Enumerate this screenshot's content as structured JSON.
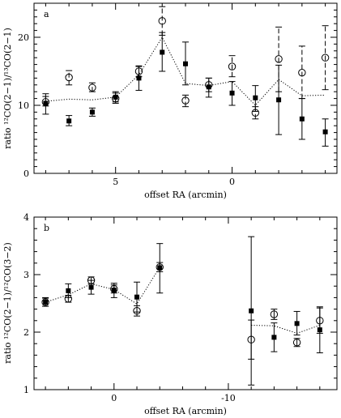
{
  "chart_data": [
    {
      "type": "scatter",
      "panel_label": "a",
      "xlabel": "offset RA  (arcmin)",
      "ylabel": "ratio ¹²CO(2−1)/¹³CO(2−1)",
      "xlim": [
        8.5,
        -4.5
      ],
      "ylim": [
        0,
        25
      ],
      "xticks": [
        5,
        0
      ],
      "yticks": [
        0,
        10,
        20
      ],
      "series": [
        {
          "marker": "filled-square",
          "error_style": "solid",
          "points": [
            {
              "x": 8,
              "y": 10.3,
              "lo": 8.7,
              "hi": 11.7
            },
            {
              "x": 7,
              "y": 7.7,
              "lo": 7.0,
              "hi": 8.5
            },
            {
              "x": 6,
              "y": 9.0,
              "lo": 8.4,
              "hi": 9.6
            },
            {
              "x": 5,
              "y": 11.2,
              "lo": 10.5,
              "hi": 12.0
            },
            {
              "x": 4,
              "y": 14.0,
              "lo": 12.2,
              "hi": 15.7
            },
            {
              "x": 3,
              "y": 17.8,
              "lo": 15.0,
              "hi": 20.7
            },
            {
              "x": 2,
              "y": 16.1,
              "lo": 13.0,
              "hi": 19.3
            },
            {
              "x": 1,
              "y": 12.7,
              "lo": 11.2,
              "hi": 14.0
            },
            {
              "x": 0,
              "y": 11.8,
              "lo": 10.0,
              "hi": 13.5
            },
            {
              "x": -1,
              "y": 11.1,
              "lo": 9.1,
              "hi": 12.9
            },
            {
              "x": -2,
              "y": 10.8,
              "lo": 5.7,
              "hi": 15.9
            },
            {
              "x": -3,
              "y": 8.0,
              "lo": 5.0,
              "hi": 11.0
            },
            {
              "x": -4,
              "y": 6.1,
              "lo": 4.0,
              "hi": 8.0
            }
          ]
        },
        {
          "marker": "open-circle",
          "error_style": "dashed",
          "points": [
            {
              "x": 8,
              "y": 10.5,
              "lo": 9.9,
              "hi": 11.3
            },
            {
              "x": 7,
              "y": 14.1,
              "lo": 13.0,
              "hi": 15.1
            },
            {
              "x": 6,
              "y": 12.6,
              "lo": 12.0,
              "hi": 13.3
            },
            {
              "x": 5,
              "y": 11.0,
              "lo": 10.3,
              "hi": 11.8
            },
            {
              "x": 4,
              "y": 15.0,
              "lo": 14.2,
              "hi": 15.8
            },
            {
              "x": 3,
              "y": 22.4,
              "lo": 20.3,
              "hi": 24.5
            },
            {
              "x": 2,
              "y": 10.7,
              "lo": 9.8,
              "hi": 11.5
            },
            {
              "x": 1,
              "y": 13.0,
              "lo": 12.0,
              "hi": 14.0
            },
            {
              "x": 0,
              "y": 15.7,
              "lo": 14.2,
              "hi": 17.3
            },
            {
              "x": -1,
              "y": 8.9,
              "lo": 8.0,
              "hi": 9.8
            },
            {
              "x": -2,
              "y": 16.8,
              "lo": 12.0,
              "hi": 21.5
            },
            {
              "x": -3,
              "y": 14.8,
              "lo": 11.0,
              "hi": 18.7
            },
            {
              "x": -4,
              "y": 17.0,
              "lo": 12.3,
              "hi": 21.7
            }
          ]
        },
        {
          "marker": "none",
          "line_style": "dotted",
          "points": [
            {
              "x": 8,
              "y": 10.6
            },
            {
              "x": 7,
              "y": 10.9
            },
            {
              "x": 6,
              "y": 10.8
            },
            {
              "x": 5,
              "y": 11.2
            },
            {
              "x": 4,
              "y": 14.5
            },
            {
              "x": 3,
              "y": 20.0
            },
            {
              "x": 2,
              "y": 13.2
            },
            {
              "x": 1,
              "y": 12.9
            },
            {
              "x": 0,
              "y": 13.5
            },
            {
              "x": -1,
              "y": 10.0
            },
            {
              "x": -2,
              "y": 13.8
            },
            {
              "x": -3,
              "y": 11.4
            },
            {
              "x": -4,
              "y": 11.5
            }
          ]
        }
      ]
    },
    {
      "type": "scatter",
      "panel_label": "b",
      "xlabel": "offset RA  (arcmin)",
      "ylabel": "ratio ¹²CO(2−1)/¹²CO(3−2)",
      "xlim": [
        7,
        -19.5
      ],
      "ylim": [
        1,
        4
      ],
      "xticks": [
        0,
        -10
      ],
      "yticks": [
        1,
        2,
        3,
        4
      ],
      "series": [
        {
          "marker": "filled-square",
          "error_style": "solid",
          "points": [
            {
              "x": 6,
              "y": 2.52,
              "lo": 2.45,
              "hi": 2.6
            },
            {
              "x": 4,
              "y": 2.72,
              "lo": 2.6,
              "hi": 2.84
            },
            {
              "x": 2,
              "y": 2.78,
              "lo": 2.66,
              "hi": 2.9
            },
            {
              "x": 0,
              "y": 2.73,
              "lo": 2.6,
              "hi": 2.85
            },
            {
              "x": -2,
              "y": 2.61,
              "lo": 2.35,
              "hi": 2.87
            },
            {
              "x": -4,
              "y": 3.12,
              "lo": 2.68,
              "hi": 3.54
            },
            {
              "x": -12,
              "y": 2.37,
              "lo": 1.08,
              "hi": 3.66
            },
            {
              "x": -14,
              "y": 1.91,
              "lo": 1.66,
              "hi": 2.16
            },
            {
              "x": -16,
              "y": 2.15,
              "lo": 1.95,
              "hi": 2.36
            },
            {
              "x": -18,
              "y": 2.04,
              "lo": 1.64,
              "hi": 2.44
            }
          ]
        },
        {
          "marker": "open-circle",
          "error_style": "solid",
          "points": [
            {
              "x": 6,
              "y": 2.52,
              "lo": 2.45,
              "hi": 2.59
            },
            {
              "x": 4,
              "y": 2.58,
              "lo": 2.52,
              "hi": 2.64
            },
            {
              "x": 2,
              "y": 2.9,
              "lo": 2.84,
              "hi": 2.96
            },
            {
              "x": 0,
              "y": 2.75,
              "lo": 2.68,
              "hi": 2.82
            },
            {
              "x": -2,
              "y": 2.37,
              "lo": 2.28,
              "hi": 2.46
            },
            {
              "x": -4,
              "y": 3.13,
              "lo": 3.05,
              "hi": 3.21
            },
            {
              "x": -12,
              "y": 1.87,
              "lo": 1.53,
              "hi": 2.21
            },
            {
              "x": -14,
              "y": 2.31,
              "lo": 2.22,
              "hi": 2.4
            },
            {
              "x": -16,
              "y": 1.82,
              "lo": 1.75,
              "hi": 1.89
            },
            {
              "x": -18,
              "y": 2.2,
              "lo": 1.98,
              "hi": 2.42
            }
          ]
        },
        {
          "marker": "none",
          "line_style": "dotted",
          "segments": [
            [
              {
                "x": 6,
                "y": 2.52
              },
              {
                "x": 4,
                "y": 2.65
              },
              {
                "x": 2,
                "y": 2.84
              },
              {
                "x": 0,
                "y": 2.74
              },
              {
                "x": -2,
                "y": 2.49
              },
              {
                "x": -4,
                "y": 3.13
              }
            ],
            [
              {
                "x": -12,
                "y": 2.12
              },
              {
                "x": -14,
                "y": 2.11
              },
              {
                "x": -16,
                "y": 1.98
              },
              {
                "x": -18,
                "y": 2.12
              }
            ]
          ]
        }
      ]
    }
  ]
}
